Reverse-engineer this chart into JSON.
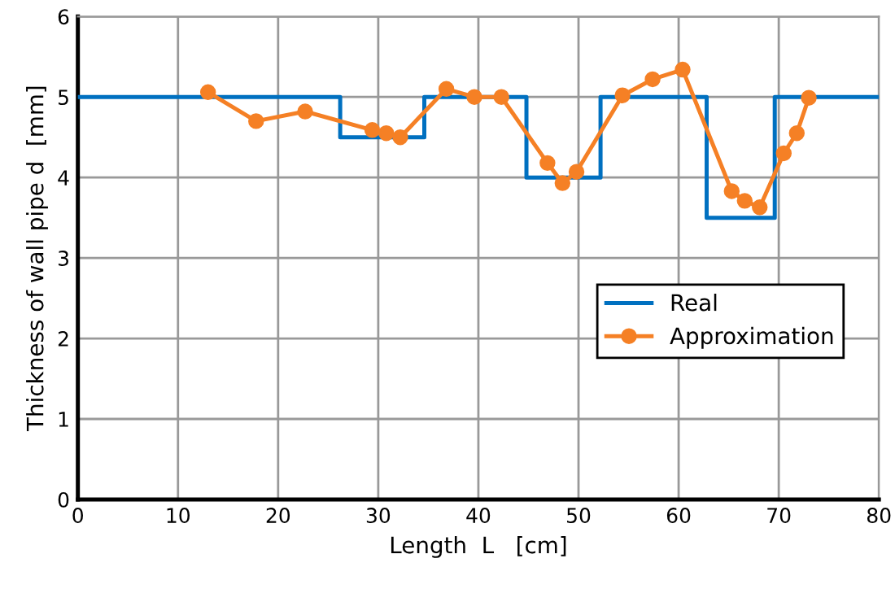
{
  "chart_data": {
    "type": "line",
    "xlabel": "Length  L   [cm]",
    "ylabel": "Thickness of wall pipe d  [mm]",
    "xlim": [
      0,
      80
    ],
    "xticks": [
      0,
      10,
      20,
      30,
      40,
      50,
      60,
      70,
      80
    ],
    "ylim": [
      0,
      6
    ],
    "yticks": [
      0,
      1,
      2,
      3,
      4,
      5,
      6
    ],
    "grid": true,
    "legend": "lower right",
    "series": [
      {
        "name": "Real",
        "type": "step",
        "color": "#0070c0",
        "marker": "none",
        "x": [
          0,
          26.2,
          34.6,
          44.8,
          52.2,
          62.8,
          69.6,
          80
        ],
        "values": [
          5,
          4.5,
          5,
          4,
          5,
          3.5,
          5,
          5
        ]
      },
      {
        "name": "Approximation",
        "color": "#f58025",
        "marker": "circle",
        "x": [
          13.0,
          17.8,
          22.7,
          29.4,
          30.8,
          32.2,
          36.8,
          39.6,
          42.3,
          46.9,
          48.4,
          49.8,
          54.4,
          57.4,
          60.4,
          65.3,
          66.6,
          68.1,
          70.5,
          71.8,
          73.0
        ],
        "values": [
          5.06,
          4.7,
          4.82,
          4.59,
          4.55,
          4.5,
          5.1,
          5.0,
          5.0,
          4.18,
          3.93,
          4.07,
          5.02,
          5.22,
          5.34,
          3.83,
          3.71,
          3.63,
          4.3,
          4.55,
          4.99
        ]
      }
    ]
  }
}
